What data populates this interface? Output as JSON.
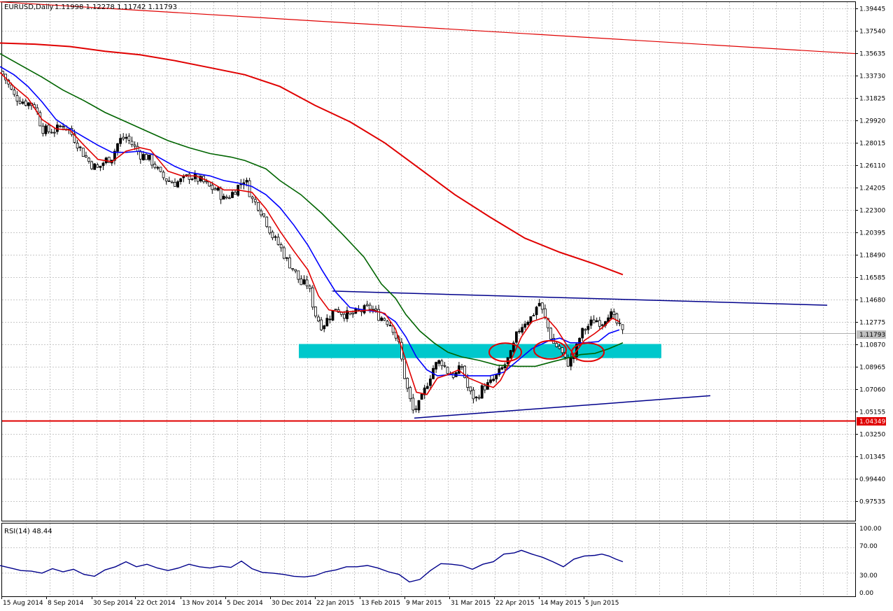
{
  "header": {
    "symbol_label": "EURUSD,Daily",
    "ohlc_label": "1.11998 1.12278 1.11742 1.11793"
  },
  "rsi": {
    "label": "RSI(14) 48.44",
    "levels": [
      "100.00",
      "70.00",
      "30.00",
      "0.00"
    ]
  },
  "price_tag": "1.11793",
  "support_tag": "1.04349",
  "colors": {
    "bull": "#000000",
    "bear": "#ffffff",
    "ma_fast": "#e00000",
    "ma_mid": "#0000ff",
    "ma_slow": "#006400",
    "ma_200": "#e00000",
    "trendline": "#00008b",
    "zone": "#00c8cc",
    "rsi": "#00008b",
    "support": "#e00000",
    "grid": "#c8c8c8"
  },
  "chart_data": {
    "type": "candlestick",
    "symbol": "EURUSD",
    "timeframe": "Daily",
    "ohlc_last": {
      "open": 1.11998,
      "high": 1.12278,
      "low": 1.11742,
      "close": 1.11793
    },
    "y_ticks": [
      "1.39445",
      "1.37540",
      "1.35635",
      "1.33730",
      "1.31825",
      "1.29920",
      "1.28015",
      "1.26110",
      "1.24205",
      "1.22300",
      "1.20395",
      "1.18490",
      "1.16585",
      "1.14680",
      "1.12775",
      "1.10870",
      "1.08965",
      "1.07060",
      "1.05155",
      "1.03250",
      "1.01345",
      "0.99440",
      "0.97535"
    ],
    "x_ticks": [
      "15 Aug 2014",
      "8 Sep 2014",
      "30 Sep 2014",
      "22 Oct 2014",
      "13 Nov 2014",
      "5 Dec 2014",
      "30 Dec 2014",
      "22 Jan 2015",
      "13 Feb 2015",
      "9 Mar 2015",
      "31 Mar 2015",
      "22 Apr 2015",
      "14 May 2015",
      "5 Jun 2015"
    ],
    "ylim": [
      0.965,
      1.4
    ],
    "support_level": 1.04349,
    "indicators": [
      "MA fast (red)",
      "MA mid (blue)",
      "MA slow (green)",
      "MA 200 (red)",
      "RSI(14)"
    ],
    "rsi_last": 48.44,
    "rsi_range": [
      0,
      100
    ],
    "rsi_levels": [
      30,
      70
    ],
    "close_path": [
      [
        0,
        1.343
      ],
      [
        10,
        1.332
      ],
      [
        20,
        1.32
      ],
      [
        30,
        1.316
      ],
      [
        40,
        1.314
      ],
      [
        50,
        1.312
      ],
      [
        60,
        1.292
      ],
      [
        70,
        1.29
      ],
      [
        80,
        1.291
      ],
      [
        90,
        1.296
      ],
      [
        100,
        1.29
      ],
      [
        110,
        1.28
      ],
      [
        120,
        1.27
      ],
      [
        130,
        1.262
      ],
      [
        140,
        1.258
      ],
      [
        150,
        1.265
      ],
      [
        160,
        1.268
      ],
      [
        170,
        1.282
      ],
      [
        180,
        1.285
      ],
      [
        190,
        1.278
      ],
      [
        200,
        1.27
      ],
      [
        210,
        1.268
      ],
      [
        220,
        1.262
      ],
      [
        230,
        1.252
      ],
      [
        240,
        1.248
      ],
      [
        250,
        1.246
      ],
      [
        260,
        1.248
      ],
      [
        270,
        1.252
      ],
      [
        280,
        1.25
      ],
      [
        290,
        1.247
      ],
      [
        300,
        1.242
      ],
      [
        310,
        1.24
      ],
      [
        320,
        1.232
      ],
      [
        330,
        1.236
      ],
      [
        340,
        1.243
      ],
      [
        350,
        1.25
      ],
      [
        360,
        1.232
      ],
      [
        370,
        1.226
      ],
      [
        380,
        1.214
      ],
      [
        390,
        1.2
      ],
      [
        400,
        1.192
      ],
      [
        410,
        1.18
      ],
      [
        420,
        1.172
      ],
      [
        430,
        1.16
      ],
      [
        440,
        1.16
      ],
      [
        450,
        1.135
      ],
      [
        460,
        1.124
      ],
      [
        470,
        1.132
      ],
      [
        480,
        1.14
      ],
      [
        490,
        1.135
      ],
      [
        500,
        1.133
      ],
      [
        510,
        1.136
      ],
      [
        520,
        1.138
      ],
      [
        530,
        1.14
      ],
      [
        540,
        1.133
      ],
      [
        550,
        1.13
      ],
      [
        560,
        1.125
      ],
      [
        570,
        1.108
      ],
      [
        580,
        1.075
      ],
      [
        590,
        1.052
      ],
      [
        600,
        1.058
      ],
      [
        610,
        1.075
      ],
      [
        620,
        1.09
      ],
      [
        630,
        1.095
      ],
      [
        640,
        1.085
      ],
      [
        650,
        1.082
      ],
      [
        660,
        1.09
      ],
      [
        670,
        1.068
      ],
      [
        680,
        1.062
      ],
      [
        690,
        1.072
      ],
      [
        700,
        1.075
      ],
      [
        710,
        1.082
      ],
      [
        720,
        1.09
      ],
      [
        730,
        1.1
      ],
      [
        740,
        1.12
      ],
      [
        750,
        1.128
      ],
      [
        760,
        1.132
      ],
      [
        770,
        1.145
      ],
      [
        780,
        1.128
      ],
      [
        790,
        1.11
      ],
      [
        800,
        1.105
      ],
      [
        810,
        1.092
      ],
      [
        820,
        1.098
      ],
      [
        830,
        1.118
      ],
      [
        840,
        1.124
      ],
      [
        850,
        1.13
      ],
      [
        860,
        1.127
      ],
      [
        870,
        1.136
      ],
      [
        880,
        1.128
      ],
      [
        890,
        1.118
      ]
    ],
    "ma_fast_path": [
      [
        0,
        1.34
      ],
      [
        20,
        1.328
      ],
      [
        40,
        1.318
      ],
      [
        60,
        1.3
      ],
      [
        80,
        1.292
      ],
      [
        100,
        1.291
      ],
      [
        120,
        1.278
      ],
      [
        140,
        1.266
      ],
      [
        160,
        1.264
      ],
      [
        180,
        1.273
      ],
      [
        200,
        1.276
      ],
      [
        215,
        1.274
      ],
      [
        240,
        1.256
      ],
      [
        260,
        1.252
      ],
      [
        280,
        1.252
      ],
      [
        300,
        1.247
      ],
      [
        320,
        1.24
      ],
      [
        340,
        1.24
      ],
      [
        360,
        1.238
      ],
      [
        380,
        1.224
      ],
      [
        400,
        1.205
      ],
      [
        420,
        1.188
      ],
      [
        440,
        1.172
      ],
      [
        455,
        1.15
      ],
      [
        470,
        1.138
      ],
      [
        490,
        1.136
      ],
      [
        510,
        1.137
      ],
      [
        530,
        1.138
      ],
      [
        550,
        1.135
      ],
      [
        565,
        1.122
      ],
      [
        580,
        1.095
      ],
      [
        595,
        1.068
      ],
      [
        610,
        1.066
      ],
      [
        625,
        1.08
      ],
      [
        640,
        1.083
      ],
      [
        655,
        1.087
      ],
      [
        670,
        1.08
      ],
      [
        690,
        1.075
      ],
      [
        705,
        1.072
      ],
      [
        715,
        1.078
      ],
      [
        730,
        1.095
      ],
      [
        745,
        1.115
      ],
      [
        760,
        1.128
      ],
      [
        780,
        1.132
      ],
      [
        795,
        1.122
      ],
      [
        810,
        1.108
      ],
      [
        820,
        1.1
      ],
      [
        835,
        1.112
      ],
      [
        850,
        1.118
      ],
      [
        865,
        1.125
      ],
      [
        875,
        1.131
      ],
      [
        885,
        1.128
      ]
    ],
    "ma_mid_path": [
      [
        0,
        1.345
      ],
      [
        20,
        1.338
      ],
      [
        40,
        1.328
      ],
      [
        60,
        1.315
      ],
      [
        80,
        1.3
      ],
      [
        100,
        1.292
      ],
      [
        120,
        1.285
      ],
      [
        140,
        1.278
      ],
      [
        160,
        1.272
      ],
      [
        180,
        1.272
      ],
      [
        200,
        1.273
      ],
      [
        220,
        1.27
      ],
      [
        250,
        1.26
      ],
      [
        270,
        1.255
      ],
      [
        300,
        1.252
      ],
      [
        320,
        1.248
      ],
      [
        340,
        1.246
      ],
      [
        360,
        1.243
      ],
      [
        380,
        1.236
      ],
      [
        400,
        1.225
      ],
      [
        420,
        1.21
      ],
      [
        440,
        1.193
      ],
      [
        460,
        1.172
      ],
      [
        480,
        1.153
      ],
      [
        500,
        1.14
      ],
      [
        520,
        1.138
      ],
      [
        545,
        1.136
      ],
      [
        565,
        1.128
      ],
      [
        580,
        1.115
      ],
      [
        595,
        1.098
      ],
      [
        610,
        1.087
      ],
      [
        625,
        1.082
      ],
      [
        645,
        1.083
      ],
      [
        665,
        1.082
      ],
      [
        685,
        1.082
      ],
      [
        700,
        1.082
      ],
      [
        720,
        1.085
      ],
      [
        740,
        1.095
      ],
      [
        760,
        1.105
      ],
      [
        785,
        1.112
      ],
      [
        800,
        1.114
      ],
      [
        815,
        1.11
      ],
      [
        835,
        1.11
      ],
      [
        855,
        1.111
      ],
      [
        870,
        1.118
      ],
      [
        885,
        1.121
      ]
    ],
    "ma_slow_path": [
      [
        0,
        1.356
      ],
      [
        30,
        1.346
      ],
      [
        60,
        1.336
      ],
      [
        90,
        1.325
      ],
      [
        120,
        1.316
      ],
      [
        150,
        1.306
      ],
      [
        180,
        1.298
      ],
      [
        210,
        1.29
      ],
      [
        240,
        1.282
      ],
      [
        270,
        1.276
      ],
      [
        300,
        1.271
      ],
      [
        330,
        1.268
      ],
      [
        350,
        1.265
      ],
      [
        380,
        1.258
      ],
      [
        400,
        1.248
      ],
      [
        430,
        1.236
      ],
      [
        460,
        1.22
      ],
      [
        490,
        1.202
      ],
      [
        520,
        1.183
      ],
      [
        545,
        1.16
      ],
      [
        565,
        1.148
      ],
      [
        580,
        1.134
      ],
      [
        600,
        1.12
      ],
      [
        620,
        1.11
      ],
      [
        640,
        1.102
      ],
      [
        660,
        1.098
      ],
      [
        685,
        1.095
      ],
      [
        710,
        1.091
      ],
      [
        740,
        1.09
      ],
      [
        765,
        1.09
      ],
      [
        790,
        1.094
      ],
      [
        810,
        1.097
      ],
      [
        830,
        1.1
      ],
      [
        850,
        1.101
      ],
      [
        870,
        1.105
      ],
      [
        890,
        1.11
      ]
    ],
    "ma200_path": [
      [
        0,
        1.365
      ],
      [
        50,
        1.364
      ],
      [
        100,
        1.362
      ],
      [
        150,
        1.358
      ],
      [
        200,
        1.355
      ],
      [
        250,
        1.35
      ],
      [
        300,
        1.344
      ],
      [
        350,
        1.338
      ],
      [
        400,
        1.328
      ],
      [
        450,
        1.312
      ],
      [
        500,
        1.298
      ],
      [
        550,
        1.28
      ],
      [
        600,
        1.258
      ],
      [
        650,
        1.236
      ],
      [
        700,
        1.217
      ],
      [
        750,
        1.199
      ],
      [
        800,
        1.187
      ],
      [
        850,
        1.177
      ],
      [
        890,
        1.168
      ]
    ],
    "trend_upper": [
      [
        0,
        1.4
      ],
      [
        1222,
        1.356
      ]
    ],
    "channel_upper": [
      [
        475,
        1.154
      ],
      [
        1182,
        1.142
      ]
    ],
    "channel_lower": [
      [
        592,
        1.046
      ],
      [
        1015,
        1.065
      ]
    ],
    "support_zone": {
      "x0": 427,
      "x1": 945,
      "low": 1.097,
      "high": 1.109
    },
    "ellipses": [
      [
        722,
        1.102
      ],
      [
        786,
        1.104
      ],
      [
        840,
        1.102
      ]
    ],
    "rsi_path": [
      [
        0,
        42
      ],
      [
        15,
        38
      ],
      [
        30,
        34
      ],
      [
        45,
        33
      ],
      [
        60,
        30
      ],
      [
        75,
        37
      ],
      [
        90,
        32
      ],
      [
        105,
        36
      ],
      [
        120,
        28
      ],
      [
        135,
        25
      ],
      [
        150,
        35
      ],
      [
        165,
        40
      ],
      [
        180,
        48
      ],
      [
        195,
        40
      ],
      [
        210,
        44
      ],
      [
        225,
        38
      ],
      [
        240,
        34
      ],
      [
        255,
        38
      ],
      [
        270,
        44
      ],
      [
        285,
        40
      ],
      [
        300,
        38
      ],
      [
        315,
        41
      ],
      [
        330,
        39
      ],
      [
        345,
        49
      ],
      [
        360,
        37
      ],
      [
        375,
        31
      ],
      [
        390,
        30
      ],
      [
        405,
        28
      ],
      [
        420,
        25
      ],
      [
        435,
        24
      ],
      [
        450,
        26
      ],
      [
        465,
        32
      ],
      [
        480,
        35
      ],
      [
        495,
        40
      ],
      [
        510,
        40
      ],
      [
        525,
        42
      ],
      [
        540,
        38
      ],
      [
        555,
        32
      ],
      [
        570,
        28
      ],
      [
        585,
        16
      ],
      [
        600,
        20
      ],
      [
        615,
        34
      ],
      [
        630,
        45
      ],
      [
        645,
        44
      ],
      [
        660,
        42
      ],
      [
        675,
        36
      ],
      [
        690,
        44
      ],
      [
        705,
        48
      ],
      [
        720,
        60
      ],
      [
        735,
        62
      ],
      [
        745,
        66
      ],
      [
        760,
        60
      ],
      [
        775,
        55
      ],
      [
        790,
        48
      ],
      [
        805,
        40
      ],
      [
        820,
        52
      ],
      [
        835,
        57
      ],
      [
        850,
        58
      ],
      [
        860,
        60
      ],
      [
        870,
        57
      ],
      [
        880,
        52
      ],
      [
        890,
        48
      ]
    ]
  }
}
